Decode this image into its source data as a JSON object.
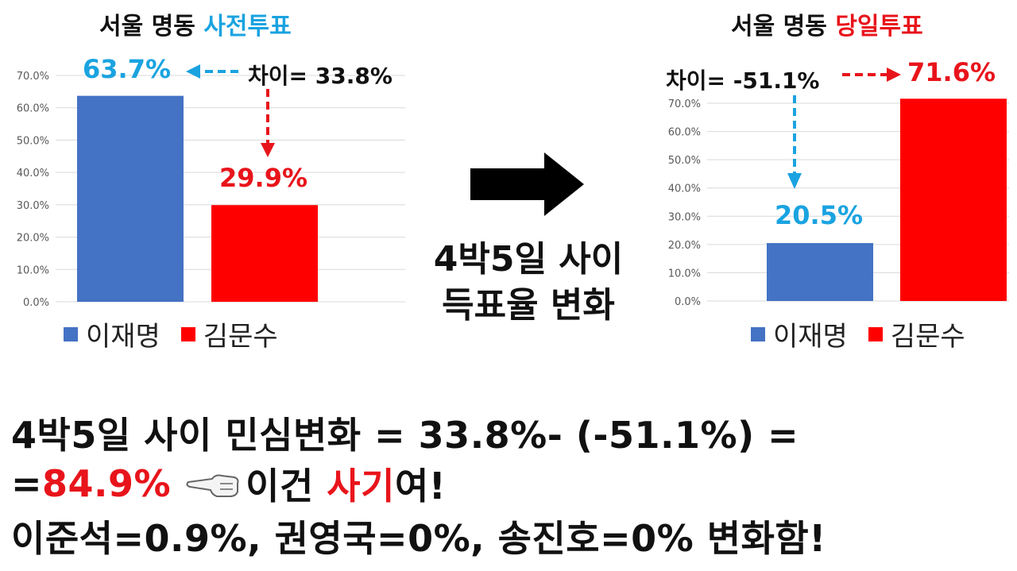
{
  "chart_data": [
    {
      "type": "bar",
      "title_prefix": "서울 명동",
      "title_highlight": "사전투표",
      "title_highlight_color": "#1aa3e0",
      "categories": [
        "이재명",
        "김문수"
      ],
      "values": [
        63.7,
        29.9
      ],
      "colors": [
        "#4472c4",
        "#ff0000"
      ],
      "yticks": [
        "0.0%",
        "10.0%",
        "20.0%",
        "30.0%",
        "40.0%",
        "50.0%",
        "60.0%",
        "70.0%"
      ],
      "ylim": [
        0,
        70
      ],
      "data_labels": [
        "63.7%",
        "29.9%"
      ],
      "annotation": "차이= 33.8%",
      "legend": [
        "이재명",
        "김문수"
      ],
      "legend_position": "bottom"
    },
    {
      "type": "bar",
      "title_prefix": "서울 명동",
      "title_highlight": "당일투표",
      "title_highlight_color": "#e8141b",
      "categories": [
        "이재명",
        "김문수"
      ],
      "values": [
        20.5,
        71.6
      ],
      "colors": [
        "#4472c4",
        "#ff0000"
      ],
      "yticks": [
        "0.0%",
        "10.0%",
        "20.0%",
        "30.0%",
        "40.0%",
        "50.0%",
        "60.0%",
        "70.0%"
      ],
      "ylim": [
        0,
        70
      ],
      "data_labels": [
        "20.5%",
        "71.6%"
      ],
      "annotation": "차이= -51.1%",
      "legend": [
        "이재명",
        "김문수"
      ],
      "legend_position": "bottom"
    }
  ],
  "middle_text": {
    "line1": "4박5일 사이",
    "line2": "득표율 변화"
  },
  "bottom_text": {
    "line1": "4박5일 사이 민심변화 = 33.8%- (-51.1%) =",
    "line2_prefix": "=",
    "line2_value": "84.9%",
    "line2_mid": "이건 ",
    "line2_highlight": "사기",
    "line2_suffix": "여!",
    "line3": "이준석=0.9%, 권영국=0%, 송진호=0% 변화함!"
  },
  "icons": {
    "big_arrow": "right-arrow-icon",
    "pointing_hand": "pointing-hand-left-icon"
  }
}
